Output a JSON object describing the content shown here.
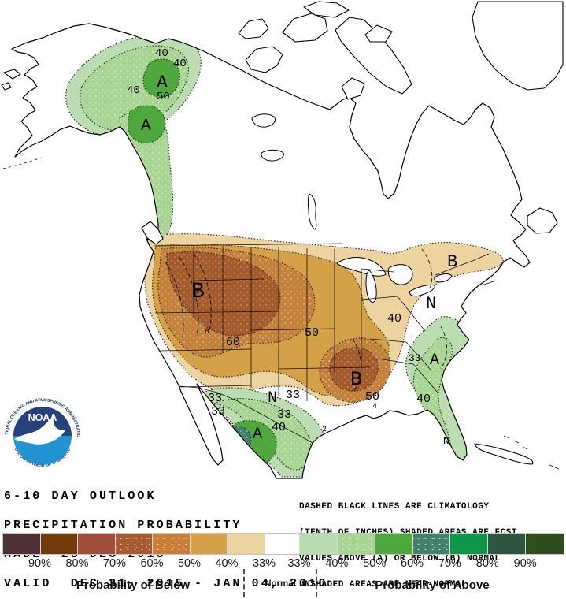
{
  "title": "6-10 Day Outlook Precipitation Probability",
  "info": {
    "left_lines": [
      "6-10 DAY OUTLOOK",
      "PRECIPITATION PROBABILITY",
      "MADE  25 DEC 2015",
      "VALID  DEC 31, 2015 - JAN 04, 2016"
    ],
    "right_lines": [
      "DASHED BLACK LINES ARE CLIMATOLOGY",
      "(TENTH OF INCHES) SHADED AREAS ARE FCST",
      "VALUES ABOVE (A) OR BELOW (B) NORMAL",
      "UNSHADED AREAS ARE NEAR-NORMAL"
    ]
  },
  "logo": {
    "name": "NOAA",
    "ring_top": "NATIONAL OCEANIC AND ATMOSPHERIC ADMINISTRATION",
    "ring_bottom": "U.S. DEPARTMENT OF COMMERCE"
  },
  "map": {
    "labels": [
      {
        "text": "40"
      },
      {
        "text": "40"
      },
      {
        "text": "A"
      },
      {
        "text": "50"
      },
      {
        "text": "40"
      },
      {
        "text": "A"
      },
      {
        "text": "B"
      },
      {
        "text": "60"
      },
      {
        "text": "50"
      },
      {
        "text": "B"
      },
      {
        "text": "50"
      },
      {
        "text": "40"
      },
      {
        "text": "B"
      },
      {
        "text": "N"
      },
      {
        "text": "A"
      },
      {
        "text": "33"
      },
      {
        "text": "40"
      },
      {
        "text": "N"
      },
      {
        "text": "N"
      },
      {
        "text": "33"
      },
      {
        "text": "33"
      },
      {
        "text": "40"
      },
      {
        "text": "A"
      },
      {
        "text": "33"
      },
      {
        "text": "33"
      },
      {
        "text": "8"
      },
      {
        "text": "8"
      },
      {
        "text": "4"
      },
      {
        "text": "2"
      }
    ],
    "colors": {
      "below_33": "#ecd3a0",
      "below_40": "#d4a148",
      "below_50": "#c4813c",
      "below_60": "#a35a2c",
      "above_33": "#bcdcb2",
      "above_40": "#a8d494",
      "above_50": "#4fa83e",
      "above_60": "#44806b"
    }
  },
  "legend": {
    "below_caption": "Probability of Below",
    "normal_caption": "Normal",
    "above_caption": "Probability of Above",
    "normal_color": "#ffffff",
    "below": [
      {
        "pct": "90%",
        "color": "#4e3238"
      },
      {
        "pct": "80%",
        "color": "#713b0a"
      },
      {
        "pct": "70%",
        "color": "#9e4e3a"
      },
      {
        "pct": "60%",
        "color": "#a85a30",
        "speckled": true
      },
      {
        "pct": "50%",
        "color": "#c87e37",
        "speckled": true
      },
      {
        "pct": "40%",
        "color": "#d4a148"
      },
      {
        "pct": "33%",
        "color": "#ecd3a0"
      }
    ],
    "above": [
      {
        "pct": "33%",
        "color": "#b8dcb0"
      },
      {
        "pct": "40%",
        "color": "#a8d494",
        "speckled": true
      },
      {
        "pct": "50%",
        "color": "#4fa83e"
      },
      {
        "pct": "60%",
        "color": "#44806b",
        "speckled": true
      },
      {
        "pct": "70%",
        "color": "#0e9748"
      },
      {
        "pct": "80%",
        "color": "#2e5540"
      },
      {
        "pct": "90%",
        "color": "#2e4e1d"
      }
    ]
  }
}
